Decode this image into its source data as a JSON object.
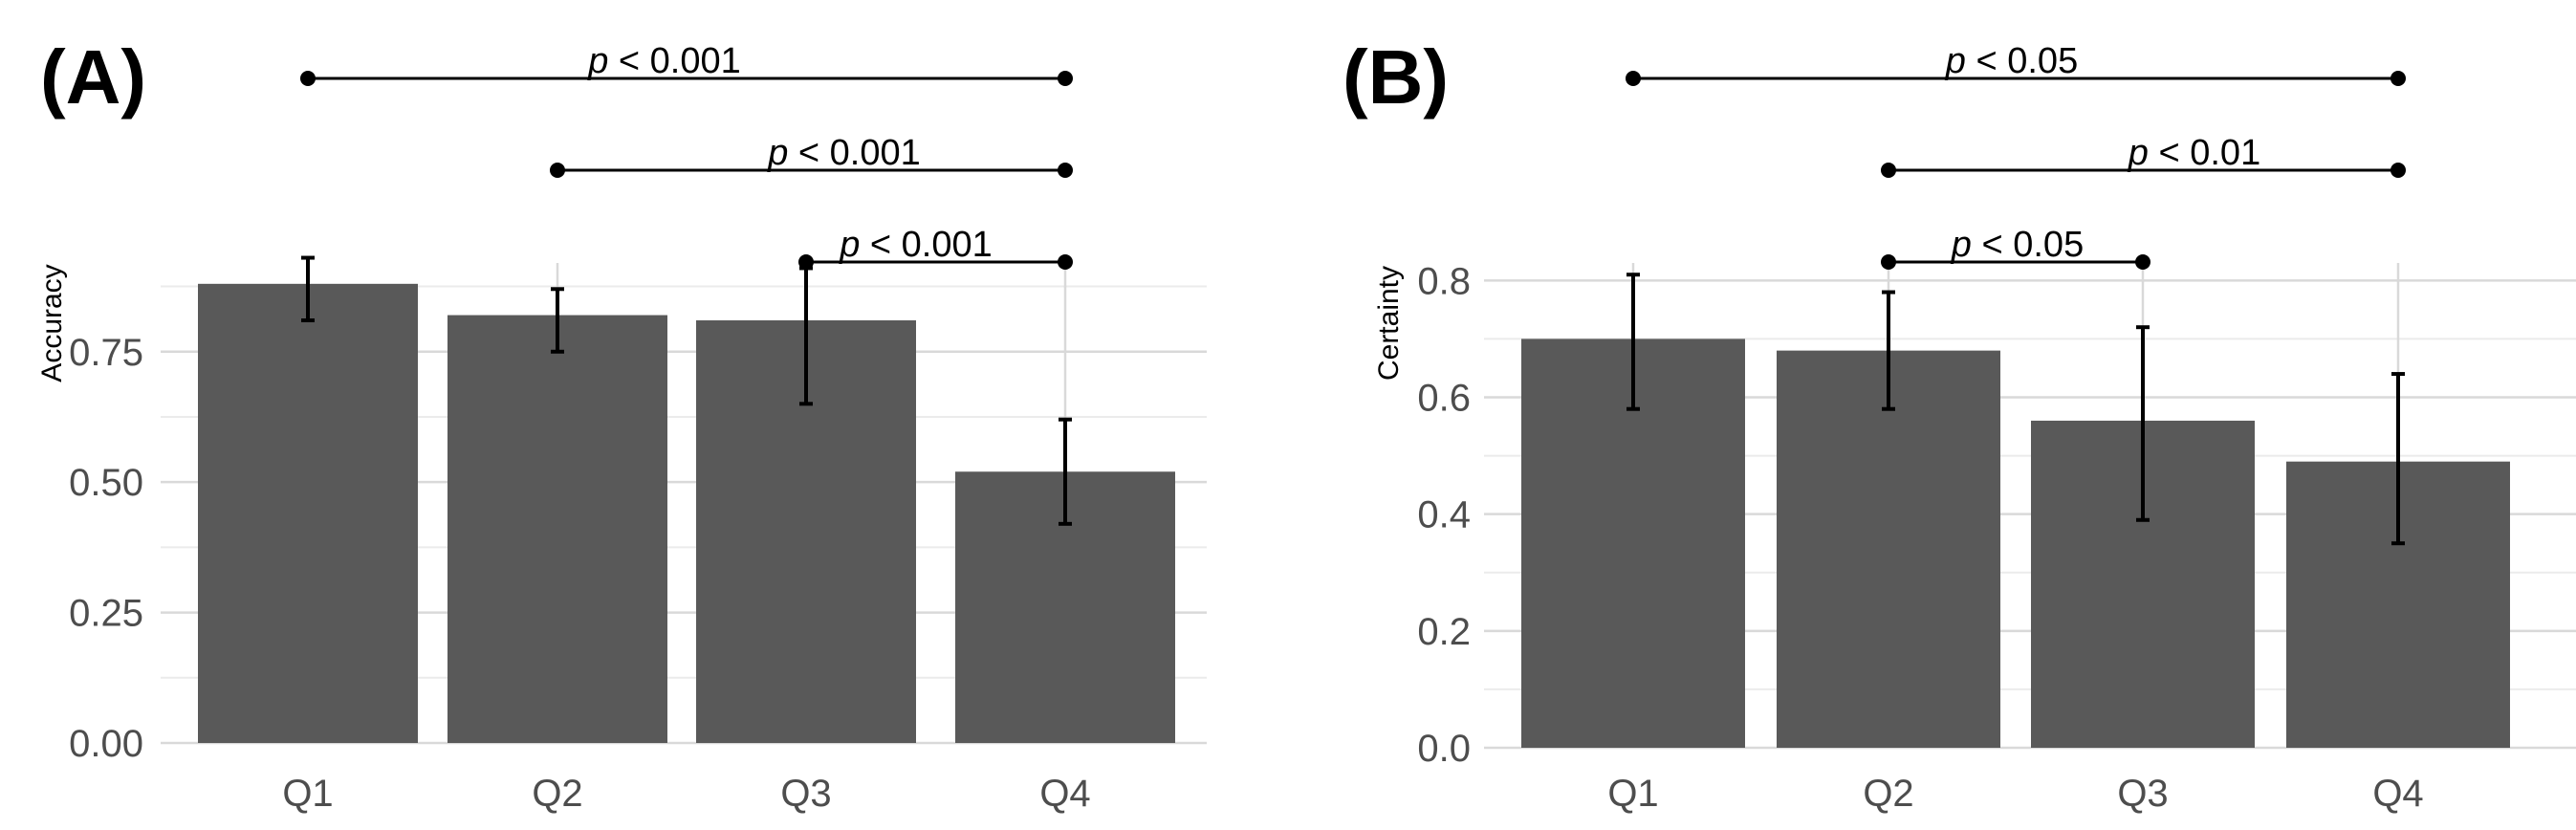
{
  "colors": {
    "bar": "#595959",
    "grid_major": "#d9d9d9",
    "grid_minor": "#ebebeb",
    "tick_text": "#4d4d4d",
    "annotation": "#000000"
  },
  "chart_data": [
    {
      "type": "bar",
      "panel_label": "(A)",
      "title": "",
      "xlabel": "",
      "ylabel": "Accuracy",
      "categories": [
        "Q1",
        "Q2",
        "Q3",
        "Q4"
      ],
      "values": [
        0.88,
        0.82,
        0.81,
        0.52
      ],
      "error_low": [
        0.81,
        0.75,
        0.65,
        0.42
      ],
      "error_high": [
        0.93,
        0.87,
        0.91,
        0.62
      ],
      "ylim": [
        0,
        0.92
      ],
      "yticks": [
        0.0,
        0.25,
        0.5,
        0.75
      ],
      "ytick_labels": [
        "0.00",
        "0.25",
        "0.50",
        "0.75"
      ],
      "grid": true,
      "significance": [
        {
          "from": "Q1",
          "to": "Q4",
          "p_symbol": "p",
          "text": " < 0.001"
        },
        {
          "from": "Q2",
          "to": "Q4",
          "p_symbol": "p",
          "text": " < 0.001"
        },
        {
          "from": "Q3",
          "to": "Q4",
          "p_symbol": "p",
          "text": " < 0.001"
        }
      ]
    },
    {
      "type": "bar",
      "panel_label": "(B)",
      "title": "",
      "xlabel": "",
      "ylabel": "Certainty",
      "categories": [
        "Q1",
        "Q2",
        "Q3",
        "Q4"
      ],
      "values": [
        0.7,
        0.68,
        0.56,
        0.49
      ],
      "error_low": [
        0.58,
        0.58,
        0.39,
        0.35
      ],
      "error_high": [
        0.81,
        0.78,
        0.72,
        0.64
      ],
      "ylim": [
        0,
        0.83
      ],
      "yticks": [
        0.0,
        0.2,
        0.4,
        0.6,
        0.8
      ],
      "ytick_labels": [
        "0.0",
        "0.2",
        "0.4",
        "0.6",
        "0.8"
      ],
      "grid": true,
      "significance": [
        {
          "from": "Q1",
          "to": "Q4",
          "p_symbol": "p",
          "text": " < 0.05"
        },
        {
          "from": "Q2",
          "to": "Q4",
          "p_symbol": "p",
          "text": " < 0.01"
        },
        {
          "from": "Q2",
          "to": "Q3",
          "p_symbol": "p",
          "text": " < 0.05"
        }
      ]
    }
  ]
}
